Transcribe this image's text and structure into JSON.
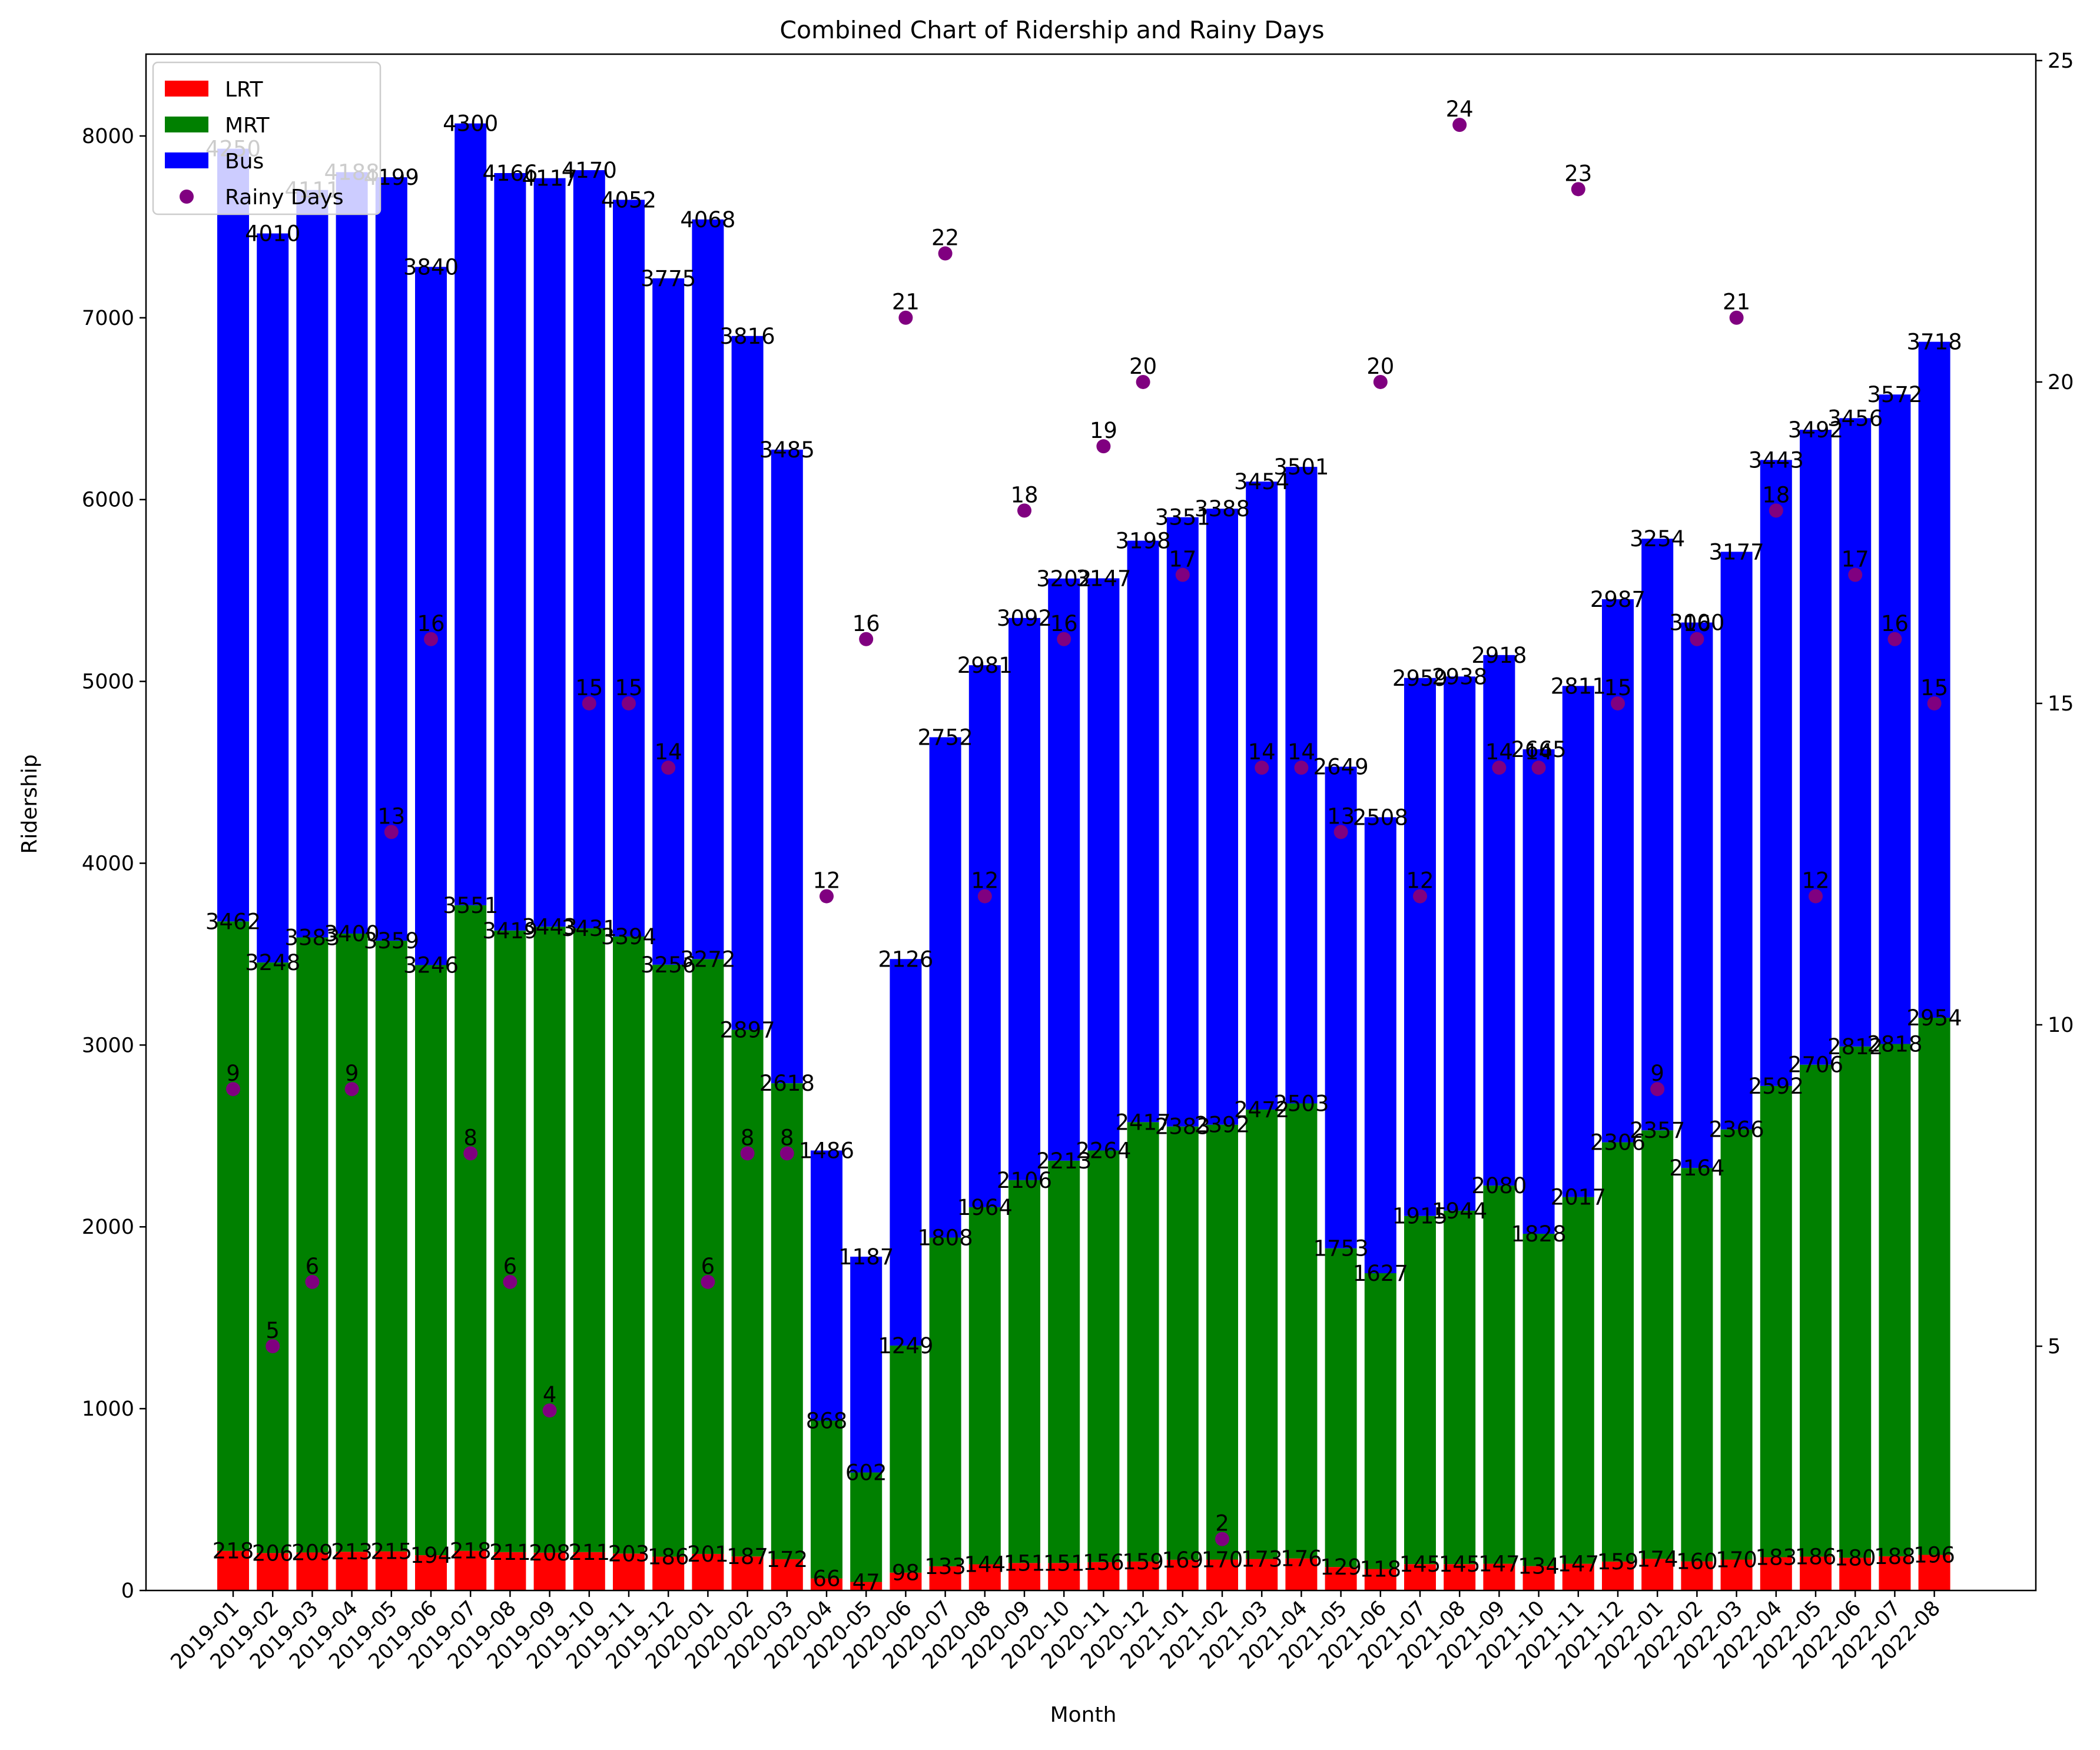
{
  "chart_data": {
    "type": "bar",
    "title": "Combined Chart of Ridership and Rainy Days",
    "xlabel": "Month",
    "ylabel": "Ridership",
    "ylim": [
      0,
      8450
    ],
    "y2lim": [
      1.2,
      25.1
    ],
    "stacked": true,
    "grid": false,
    "legend_position": "top-left",
    "categories": [
      "2019-01",
      "2019-02",
      "2019-03",
      "2019-04",
      "2019-05",
      "2019-06",
      "2019-07",
      "2019-08",
      "2019-09",
      "2019-10",
      "2019-11",
      "2019-12",
      "2020-01",
      "2020-02",
      "2020-03",
      "2020-04",
      "2020-05",
      "2020-06",
      "2020-07",
      "2020-08",
      "2020-09",
      "2020-10",
      "2020-11",
      "2020-12",
      "2021-01",
      "2021-02",
      "2021-03",
      "2021-04",
      "2021-05",
      "2021-06",
      "2021-07",
      "2021-08",
      "2021-09",
      "2021-10",
      "2021-11",
      "2021-12",
      "2022-01",
      "2022-02",
      "2022-03",
      "2022-04",
      "2022-05",
      "2022-06",
      "2022-07",
      "2022-08"
    ],
    "y_ticks": [
      0,
      1000,
      2000,
      3000,
      4000,
      5000,
      6000,
      7000,
      8000
    ],
    "y2_ticks": [
      5,
      10,
      15,
      20,
      25
    ],
    "series": [
      {
        "name": "LRT",
        "color": "#ff0000",
        "values": [
          218,
          206,
          209,
          213,
          215,
          194,
          218,
          211,
          208,
          211,
          203,
          186,
          201,
          187,
          172,
          66,
          47,
          98,
          133,
          144,
          151,
          151,
          156,
          159,
          169,
          170,
          173,
          176,
          129,
          118,
          145,
          145,
          147,
          134,
          147,
          159,
          174,
          160,
          170,
          183,
          186,
          180,
          188,
          196
        ]
      },
      {
        "name": "MRT",
        "color": "#008000",
        "values": [
          3462,
          3248,
          3383,
          3400,
          3359,
          3246,
          3551,
          3419,
          3443,
          3431,
          3394,
          3256,
          3272,
          2897,
          2618,
          868,
          602,
          1249,
          1808,
          1964,
          2106,
          2213,
          2264,
          2417,
          2383,
          2392,
          2472,
          2503,
          1753,
          1627,
          1915,
          1944,
          2080,
          1828,
          2017,
          2306,
          2357,
          2164,
          2366,
          2592,
          2706,
          2812,
          2818,
          2954
        ]
      },
      {
        "name": "Bus",
        "color": "#0000ff",
        "values": [
          4250,
          4010,
          4111,
          4188,
          4199,
          3840,
          4300,
          4166,
          4117,
          4170,
          4052,
          3775,
          4068,
          3816,
          3485,
          1486,
          1187,
          2126,
          2752,
          2981,
          3092,
          3202,
          3147,
          3198,
          3351,
          3388,
          3454,
          3501,
          2649,
          2508,
          2959,
          2938,
          2918,
          2665,
          2811,
          2987,
          3254,
          3000,
          3177,
          3443,
          3492,
          3456,
          3572,
          3718
        ]
      }
    ],
    "scatter": {
      "name": "Rainy Days",
      "color": "#800080",
      "axis": "right",
      "values": [
        9,
        5,
        6,
        9,
        13,
        16,
        8,
        6,
        4,
        15,
        15,
        14,
        6,
        8,
        8,
        12,
        16,
        21,
        22,
        12,
        18,
        16,
        19,
        20,
        17,
        2,
        14,
        14,
        13,
        20,
        12,
        24,
        14,
        14,
        23,
        15,
        9,
        16,
        21,
        18,
        12,
        17,
        16,
        15
      ]
    }
  }
}
